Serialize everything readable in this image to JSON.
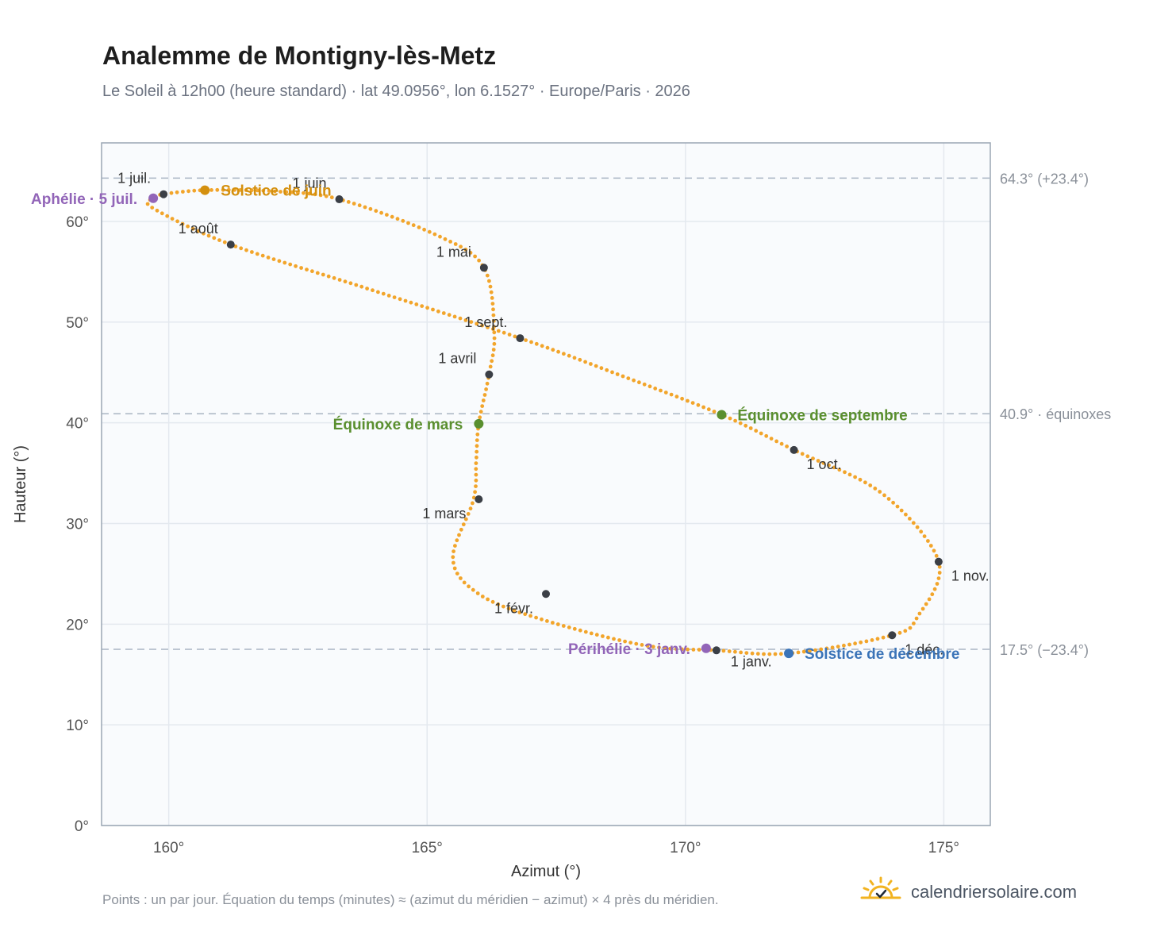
{
  "title": "Analemme de Montigny-lès-Metz",
  "subtitle": "Le Soleil à 12h00 (heure standard) · lat 49.0956°, lon 6.1527° · Europe/Paris · 2026",
  "footnote": "Points : un par jour. Équation du temps (minutes) ≈ (azimut du méridien − azimut) × 4 près du méridien.",
  "brand": {
    "text": "calendriersolaire.com",
    "icon": "sun-checkmark-icon"
  },
  "colors": {
    "curve": "#f2a52b",
    "month_marker": "#3b3f46",
    "solstice_june": "#d4900f",
    "solstice_december": "#3b74b8",
    "equinox": "#5a8f2f",
    "aphelion_perihelion": "#9265b8",
    "reference_line": "#a9b5c3"
  },
  "chart_data": {
    "type": "scatter",
    "xlabel": "Azimut (°)",
    "ylabel": "Hauteur (°)",
    "xlim": [
      158.7,
      175.9
    ],
    "ylim": [
      0,
      67.8
    ],
    "xticks": [
      {
        "value": 160,
        "label": "160°"
      },
      {
        "value": 165,
        "label": "165°"
      },
      {
        "value": 170,
        "label": "170°"
      },
      {
        "value": 175,
        "label": "175°"
      }
    ],
    "yticks": [
      {
        "value": 0,
        "label": "0°"
      },
      {
        "value": 10,
        "label": "10°"
      },
      {
        "value": 20,
        "label": "20°"
      },
      {
        "value": 30,
        "label": "30°"
      },
      {
        "value": 40,
        "label": "40°"
      },
      {
        "value": 50,
        "label": "50°"
      },
      {
        "value": 60,
        "label": "60°"
      }
    ],
    "grid": true,
    "reference_lines": [
      {
        "y": 64.3,
        "label": "64.3° (+23.4°)"
      },
      {
        "y": 40.9,
        "label": "40.9° · équinoxes"
      },
      {
        "y": 17.5,
        "label": "17.5° (−23.4°)"
      }
    ],
    "analemma_keypoints": [
      {
        "x": 170.6,
        "y": 17.4
      },
      {
        "x": 169.2,
        "y": 17.9
      },
      {
        "x": 167.2,
        "y": 20.5
      },
      {
        "x": 166.0,
        "y": 23.0
      },
      {
        "x": 165.5,
        "y": 26.5
      },
      {
        "x": 165.9,
        "y": 32.4
      },
      {
        "x": 165.95,
        "y": 36.2
      },
      {
        "x": 166.0,
        "y": 39.9
      },
      {
        "x": 166.2,
        "y": 44.8
      },
      {
        "x": 166.3,
        "y": 48.9
      },
      {
        "x": 166.1,
        "y": 55.4
      },
      {
        "x": 165.2,
        "y": 58.6
      },
      {
        "x": 163.3,
        "y": 62.2
      },
      {
        "x": 162.0,
        "y": 63.0
      },
      {
        "x": 160.7,
        "y": 63.1
      },
      {
        "x": 159.9,
        "y": 62.7
      },
      {
        "x": 159.7,
        "y": 62.3
      },
      {
        "x": 159.7,
        "y": 61.3
      },
      {
        "x": 161.2,
        "y": 57.7
      },
      {
        "x": 163.8,
        "y": 53.4
      },
      {
        "x": 166.8,
        "y": 48.4
      },
      {
        "x": 168.8,
        "y": 44.6
      },
      {
        "x": 170.7,
        "y": 40.8
      },
      {
        "x": 172.1,
        "y": 37.3
      },
      {
        "x": 173.8,
        "y": 33.0
      },
      {
        "x": 174.9,
        "y": 26.2
      },
      {
        "x": 174.5,
        "y": 20.8
      },
      {
        "x": 174.0,
        "y": 18.9
      },
      {
        "x": 172.0,
        "y": 17.1
      },
      {
        "x": 170.6,
        "y": 17.4
      }
    ],
    "month_markers": [
      {
        "label": "1 janv.",
        "x": 170.6,
        "y": 17.4,
        "label_pos": "below"
      },
      {
        "label": "1 févr.",
        "x": 167.3,
        "y": 23.0,
        "label_pos": "lower-left"
      },
      {
        "label": "1 mars",
        "x": 166.0,
        "y": 32.4,
        "label_pos": "lower-left"
      },
      {
        "label": "1 avril",
        "x": 166.2,
        "y": 44.8,
        "label_pos": "upper-left"
      },
      {
        "label": "1 mai",
        "x": 166.1,
        "y": 55.4,
        "label_pos": "upper-left"
      },
      {
        "label": "1 juin",
        "x": 163.3,
        "y": 62.2,
        "label_pos": "upper-left"
      },
      {
        "label": "1 juil.",
        "x": 159.9,
        "y": 62.7,
        "label_pos": "upper-left"
      },
      {
        "label": "1 août",
        "x": 161.2,
        "y": 57.7,
        "label_pos": "upper-left"
      },
      {
        "label": "1 sept.",
        "x": 166.8,
        "y": 48.4,
        "label_pos": "upper-left"
      },
      {
        "label": "1 oct.",
        "x": 172.1,
        "y": 37.3,
        "label_pos": "lower-right"
      },
      {
        "label": "1 nov.",
        "x": 174.9,
        "y": 26.2,
        "label_pos": "lower-right"
      },
      {
        "label": "1 déc.",
        "x": 174.0,
        "y": 18.9,
        "label_pos": "lower-right"
      }
    ],
    "events": [
      {
        "label": "Solstice de juin",
        "x": 160.7,
        "y": 63.1,
        "kind": "solstice_june",
        "label_side": "right"
      },
      {
        "label": "Solstice de décembre",
        "x": 172.0,
        "y": 17.1,
        "kind": "solstice_december",
        "label_side": "right"
      },
      {
        "label": "Équinoxe de mars",
        "x": 166.0,
        "y": 39.9,
        "kind": "equinox",
        "label_side": "left"
      },
      {
        "label": "Équinoxe de septembre",
        "x": 170.7,
        "y": 40.8,
        "kind": "equinox",
        "label_side": "right"
      },
      {
        "label": "Aphélie · 5 juil.",
        "x": 159.7,
        "y": 62.3,
        "kind": "aphelion_perihelion",
        "label_side": "left"
      },
      {
        "label": "Périhélie · 3 janv.",
        "x": 170.4,
        "y": 17.6,
        "kind": "aphelion_perihelion",
        "label_side": "left"
      }
    ]
  }
}
